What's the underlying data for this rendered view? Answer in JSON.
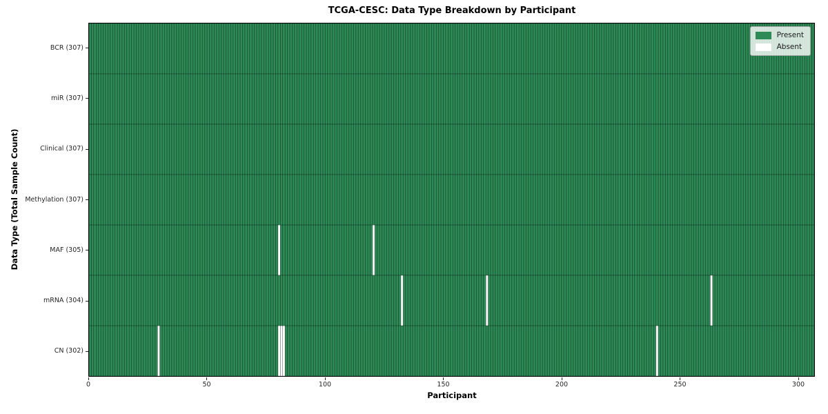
{
  "title": "TCGA-CESC: Data Type Breakdown by Participant",
  "x_axis": {
    "label": "Participant",
    "tick_labels": [
      "0",
      "50",
      "100",
      "150",
      "200",
      "250",
      "300"
    ]
  },
  "y_axis": {
    "label": "Data Type (Total Sample Count)",
    "tick_labels": [
      "BCR (307)",
      "miR (307)",
      "Clinical (307)",
      "Methylation (307)",
      "MAF (305)",
      "mRNA (304)",
      "CN (302)"
    ]
  },
  "legend": {
    "present_label": "Present",
    "absent_label": "Absent",
    "position": "upper-right"
  },
  "chart_data": {
    "type": "heatmap",
    "title": "TCGA-CESC: Data Type Breakdown by Participant",
    "xlabel": "Participant",
    "ylabel": "Data Type (Total Sample Count)",
    "n_participants": 307,
    "xlim": [
      0,
      307
    ],
    "x_ticks": [
      0,
      50,
      100,
      150,
      200,
      250,
      300
    ],
    "grid": false,
    "legend": [
      {
        "label": "Present",
        "color": "#2e8b57"
      },
      {
        "label": "Absent",
        "color": "#ffffff"
      }
    ],
    "legend_position": "upper-right",
    "colors": {
      "present": "#2e8b57",
      "absent": "#ffffff",
      "cell_edge": "rgba(0,0,0,0.55)"
    },
    "rows": [
      {
        "label": "BCR (307)",
        "data_type": "BCR",
        "total_samples": 307,
        "absent_participants": []
      },
      {
        "label": "miR (307)",
        "data_type": "miR",
        "total_samples": 307,
        "absent_participants": []
      },
      {
        "label": "Clinical (307)",
        "data_type": "Clinical",
        "total_samples": 307,
        "absent_participants": []
      },
      {
        "label": "Methylation (307)",
        "data_type": "Methylation",
        "total_samples": 307,
        "absent_participants": []
      },
      {
        "label": "MAF (305)",
        "data_type": "MAF",
        "total_samples": 305,
        "absent_participants": [
          80,
          120
        ]
      },
      {
        "label": "mRNA (304)",
        "data_type": "mRNA",
        "total_samples": 304,
        "absent_participants": [
          132,
          168,
          263
        ]
      },
      {
        "label": "CN (302)",
        "data_type": "CN",
        "total_samples": 302,
        "absent_participants": [
          29,
          80,
          81,
          82,
          240
        ]
      }
    ]
  }
}
